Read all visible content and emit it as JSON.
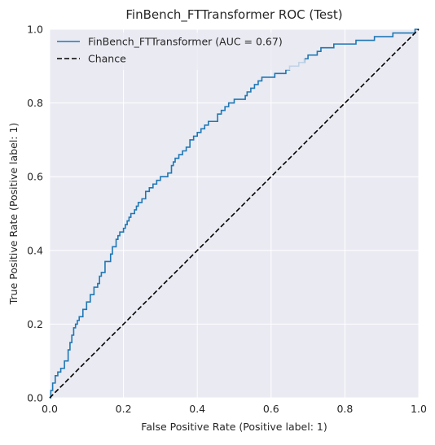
{
  "chart_data": {
    "type": "line",
    "title": "FinBench_FTTransformer ROC (Test)",
    "xlabel": "False Positive Rate (Positive label: 1)",
    "ylabel": "True Positive Rate (Positive label: 1)",
    "xlim": [
      0,
      1
    ],
    "ylim": [
      0,
      1
    ],
    "x_ticks": [
      "0.0",
      "0.2",
      "0.4",
      "0.6",
      "0.8",
      "1.0"
    ],
    "y_ticks": [
      "0.0",
      "0.2",
      "0.4",
      "0.6",
      "0.8",
      "1.0"
    ],
    "grid": true,
    "legend_position": "top-left",
    "series": [
      {
        "name": "FinBench_FTTransformer (AUC = 0.67)",
        "color": "#1f77b4",
        "style": "step",
        "x": [
          0.0,
          0.003,
          0.008,
          0.015,
          0.022,
          0.03,
          0.04,
          0.05,
          0.055,
          0.06,
          0.065,
          0.07,
          0.075,
          0.08,
          0.09,
          0.1,
          0.11,
          0.12,
          0.13,
          0.135,
          0.14,
          0.15,
          0.165,
          0.17,
          0.18,
          0.185,
          0.19,
          0.2,
          0.205,
          0.21,
          0.215,
          0.22,
          0.23,
          0.235,
          0.24,
          0.25,
          0.26,
          0.27,
          0.28,
          0.29,
          0.3,
          0.31,
          0.32,
          0.33,
          0.335,
          0.34,
          0.35,
          0.36,
          0.37,
          0.38,
          0.39,
          0.4,
          0.41,
          0.42,
          0.43,
          0.44,
          0.455,
          0.465,
          0.475,
          0.485,
          0.5,
          0.53,
          0.535,
          0.545,
          0.555,
          0.565,
          0.575,
          0.59,
          0.61,
          0.64,
          0.65,
          0.66,
          0.675,
          0.69,
          0.7,
          0.71,
          0.725,
          0.735,
          0.745,
          0.755,
          0.77,
          0.79,
          0.81,
          0.83,
          0.85,
          0.88,
          0.9,
          0.915,
          0.93,
          0.945,
          0.96,
          0.975,
          0.99,
          1.0
        ],
        "y": [
          0.0,
          0.02,
          0.04,
          0.06,
          0.07,
          0.08,
          0.1,
          0.13,
          0.15,
          0.17,
          0.19,
          0.2,
          0.21,
          0.22,
          0.24,
          0.26,
          0.28,
          0.3,
          0.31,
          0.33,
          0.34,
          0.37,
          0.39,
          0.41,
          0.43,
          0.44,
          0.45,
          0.46,
          0.47,
          0.48,
          0.49,
          0.5,
          0.51,
          0.52,
          0.53,
          0.54,
          0.56,
          0.57,
          0.58,
          0.59,
          0.6,
          0.6,
          0.61,
          0.63,
          0.64,
          0.65,
          0.66,
          0.67,
          0.68,
          0.7,
          0.71,
          0.72,
          0.73,
          0.74,
          0.75,
          0.75,
          0.77,
          0.78,
          0.79,
          0.8,
          0.81,
          0.82,
          0.83,
          0.84,
          0.85,
          0.86,
          0.87,
          0.87,
          0.88,
          0.89,
          0.9,
          0.9,
          0.91,
          0.92,
          0.93,
          0.93,
          0.94,
          0.95,
          0.95,
          0.95,
          0.96,
          0.96,
          0.96,
          0.97,
          0.97,
          0.98,
          0.98,
          0.98,
          0.99,
          0.99,
          0.99,
          0.99,
          1.0,
          1.0
        ]
      },
      {
        "name": "Chance",
        "color": "#000000",
        "style": "dashed",
        "x": [
          0,
          1
        ],
        "y": [
          0,
          1
        ]
      }
    ]
  }
}
